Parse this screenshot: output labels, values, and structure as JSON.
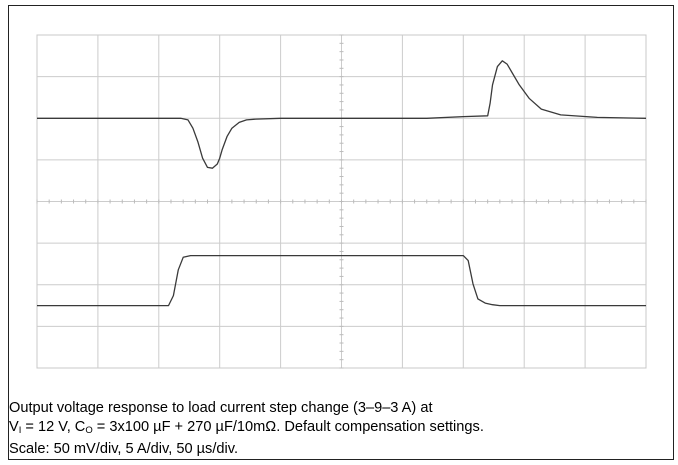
{
  "chart_data": {
    "type": "line",
    "title": "",
    "xlabel": "",
    "ylabel": "",
    "divisions": {
      "x": 10,
      "y": 8
    },
    "grid": true,
    "x_unit": "µs",
    "x_per_div": 50,
    "x_range": [
      0,
      500
    ],
    "series": [
      {
        "channel": "output-voltage",
        "unit": "mV",
        "per_div": 50,
        "baseline_div": 6.0,
        "x": [
          0,
          118,
          124,
          128,
          132,
          136,
          140,
          144,
          148,
          150,
          152,
          156,
          160,
          166,
          172,
          180,
          200,
          300,
          320,
          350,
          370,
          372,
          374,
          378,
          382,
          386,
          390,
          396,
          404,
          414,
          430,
          460,
          500
        ],
        "values": [
          0,
          0,
          -2,
          -12,
          -28,
          -48,
          -59,
          -60,
          -55,
          -48,
          -38,
          -22,
          -12,
          -5,
          -2,
          -1,
          0,
          0,
          0,
          2,
          3,
          18,
          40,
          62,
          69,
          65,
          55,
          40,
          24,
          11,
          4,
          1,
          0
        ]
      },
      {
        "channel": "load-current",
        "unit": "A",
        "per_div": 5,
        "baseline_div": 1.5,
        "x": [
          0,
          108,
          112,
          116,
          120,
          126,
          134,
          140,
          200,
          300,
          342,
          350,
          354,
          358,
          362,
          368,
          374,
          380,
          400,
          500
        ],
        "values": [
          3,
          3,
          4.2,
          7.3,
          8.8,
          9.0,
          9.0,
          9.0,
          9.0,
          9.0,
          9.0,
          9.0,
          8.4,
          5.6,
          3.8,
          3.3,
          3.1,
          3.0,
          3.0,
          3.0
        ]
      }
    ]
  },
  "caption": {
    "line1": "Output voltage response to load current step change (3–9–3 A) at",
    "line2_a": "V",
    "line2_a_sub": "I",
    "line2_b": " = 12 V, C",
    "line2_b_sub": "O",
    "line2_c": " = 3x100 µF + 270 µF/10mΩ. Default compensation settings.",
    "line3": "Scale: 50 mV/div, 5 A/div, 50 µs/div."
  }
}
